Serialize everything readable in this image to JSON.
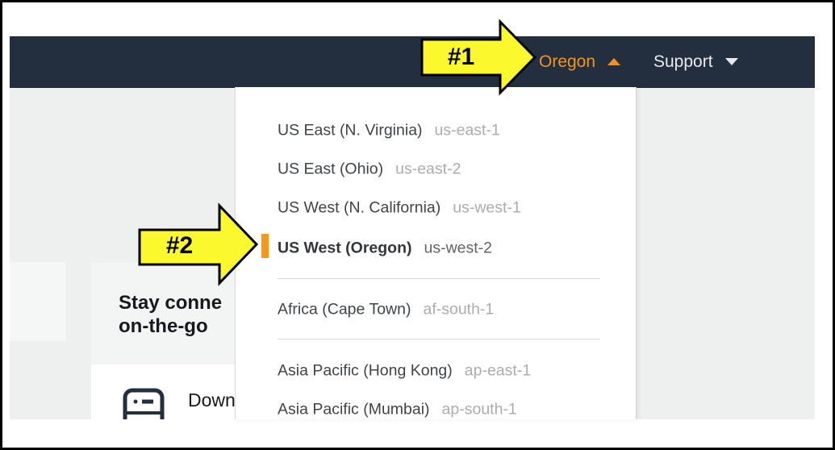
{
  "colors": {
    "navbar": "#232f3e",
    "accent_orange": "#ee9421",
    "selected_marker_orange": "#f59821",
    "annotation_yellow": "#fbf92d",
    "page_background": "#eeefef"
  },
  "annotations": {
    "step1": "#1",
    "step2": "#2"
  },
  "navbar": {
    "region_menu": {
      "label": "Oregon"
    },
    "support_menu": {
      "label": "Support"
    }
  },
  "region_dropdown": {
    "items": [
      {
        "name": "US East (N. Virginia)",
        "code": "us-east-1",
        "selected": false
      },
      {
        "name": "US East (Ohio)",
        "code": "us-east-2",
        "selected": false
      },
      {
        "name": "US West (N. California)",
        "code": "us-west-1",
        "selected": false
      },
      {
        "name": "US West (Oregon)",
        "code": "us-west-2",
        "selected": true
      },
      {
        "name": "Africa (Cape Town)",
        "code": "af-south-1",
        "selected": false
      },
      {
        "name": "Asia Pacific (Hong Kong)",
        "code": "ap-east-1",
        "selected": false
      },
      {
        "name": "Asia Pacific (Mumbai)",
        "code": "ap-south-1",
        "selected": false
      }
    ]
  },
  "promo_card": {
    "title_line1": "Stay conne",
    "title_line2": "on-the-go",
    "download_label": "Down"
  },
  "icons": {
    "region_caret": "caret-up-icon",
    "support_caret": "caret-down-icon",
    "promo_icon": "mobile-phone-icon"
  }
}
